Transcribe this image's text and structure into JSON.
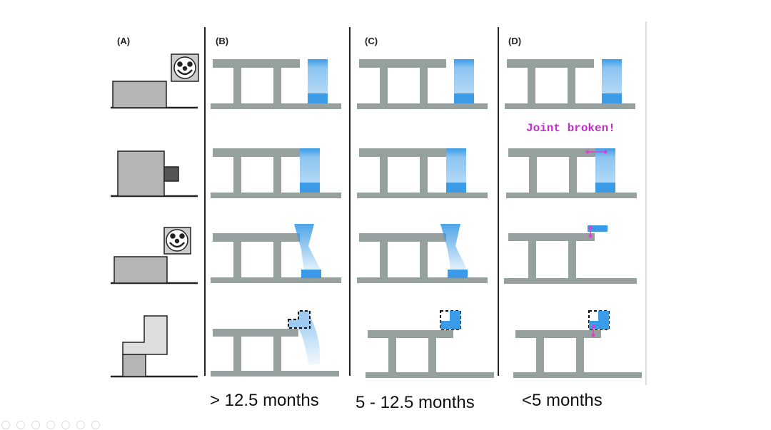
{
  "panels": {
    "a": {
      "label": "(A)"
    },
    "b": {
      "label": "(B)",
      "caption": "> 12.5 months"
    },
    "c": {
      "label": "(C)",
      "caption": "5 - 12.5 months"
    },
    "d": {
      "label": "(D)",
      "caption": "<5 months",
      "annotation": "Joint broken!"
    }
  },
  "colors": {
    "structure": "#95a09f",
    "block": "#3b9be6",
    "joint": "#e040d0",
    "annotation": "#c030c8"
  },
  "toolbar_icons": [
    "previous-icon",
    "next-icon",
    "pen-icon",
    "copy-icon",
    "zoom-icon",
    "screen-icon",
    "more-icon"
  ]
}
